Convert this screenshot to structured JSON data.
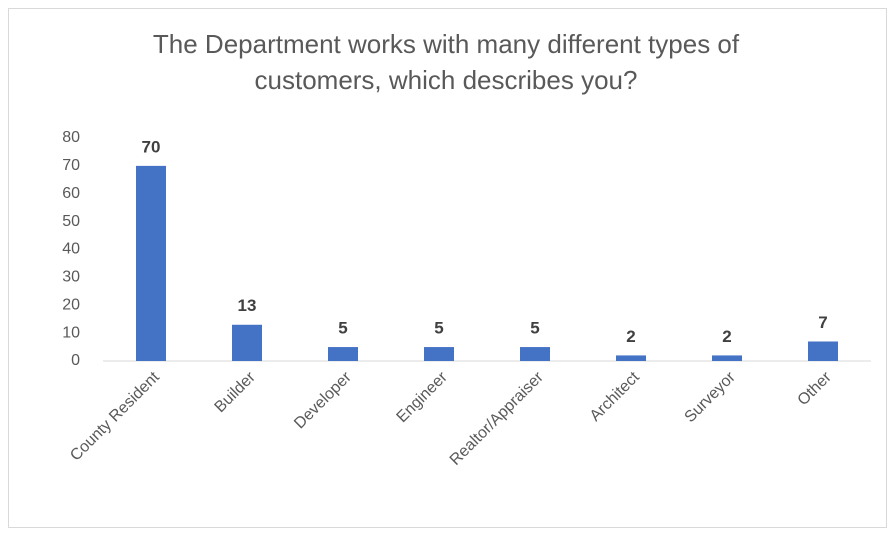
{
  "chart_data": {
    "type": "bar",
    "title": "The Department works with many different types of customers, which describes you?",
    "categories": [
      "County Resident",
      "Builder",
      "Developer",
      "Engineer",
      "Realtor/Appraiser",
      "Architect",
      "Surveyor",
      "Other"
    ],
    "values": [
      70,
      13,
      5,
      5,
      5,
      2,
      2,
      7
    ],
    "color": "#4472c4",
    "ylim": [
      0,
      80
    ],
    "yticks": [
      0,
      10,
      20,
      30,
      40,
      50,
      60,
      70,
      80
    ],
    "grid": false
  }
}
